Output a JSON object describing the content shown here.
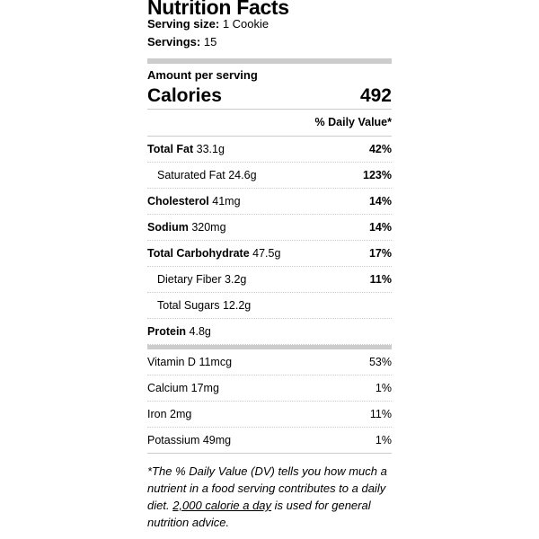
{
  "title": "Nutrition Facts",
  "serving_size": {
    "label": "Serving size:",
    "value": "1 Cookie"
  },
  "servings": {
    "label": "Servings:",
    "value": "15"
  },
  "amount_per_serving": "Amount per serving",
  "calories": {
    "label": "Calories",
    "value": "492"
  },
  "dv_header": "% Daily Value*",
  "nutrients": [
    {
      "name": "Total Fat",
      "amount": "33.1g",
      "dv": "42%",
      "bold": true
    },
    {
      "name": "Saturated Fat",
      "amount": "24.6g",
      "dv": "123%",
      "indent": true
    },
    {
      "name": "Cholesterol",
      "amount": "41mg",
      "dv": "14%",
      "bold": true
    },
    {
      "name": "Sodium",
      "amount": "320mg",
      "dv": "14%",
      "bold": true
    },
    {
      "name": "Total Carbohydrate",
      "amount": "47.5g",
      "dv": "17%",
      "bold": true
    },
    {
      "name": "Dietary Fiber",
      "amount": "3.2g",
      "dv": "11%",
      "indent": true
    },
    {
      "name": "Total Sugars",
      "amount": "12.2g",
      "dv": "",
      "indent": true
    },
    {
      "name": "Protein",
      "amount": "4.8g",
      "dv": "",
      "bold": true
    }
  ],
  "vitamins": [
    {
      "name": "Vitamin D",
      "amount": "11mcg",
      "dv": "53%"
    },
    {
      "name": "Calcium",
      "amount": "17mg",
      "dv": "1%"
    },
    {
      "name": "Iron",
      "amount": "2mg",
      "dv": "11%"
    },
    {
      "name": "Potassium",
      "amount": "49mg",
      "dv": "1%"
    }
  ],
  "footnote": {
    "before": "*The % Daily Value (DV) tells you how much a nutrient in a food serving contributes to a daily diet. ",
    "link": "2,000 calorie a day",
    "after": " is used for general nutrition advice."
  }
}
